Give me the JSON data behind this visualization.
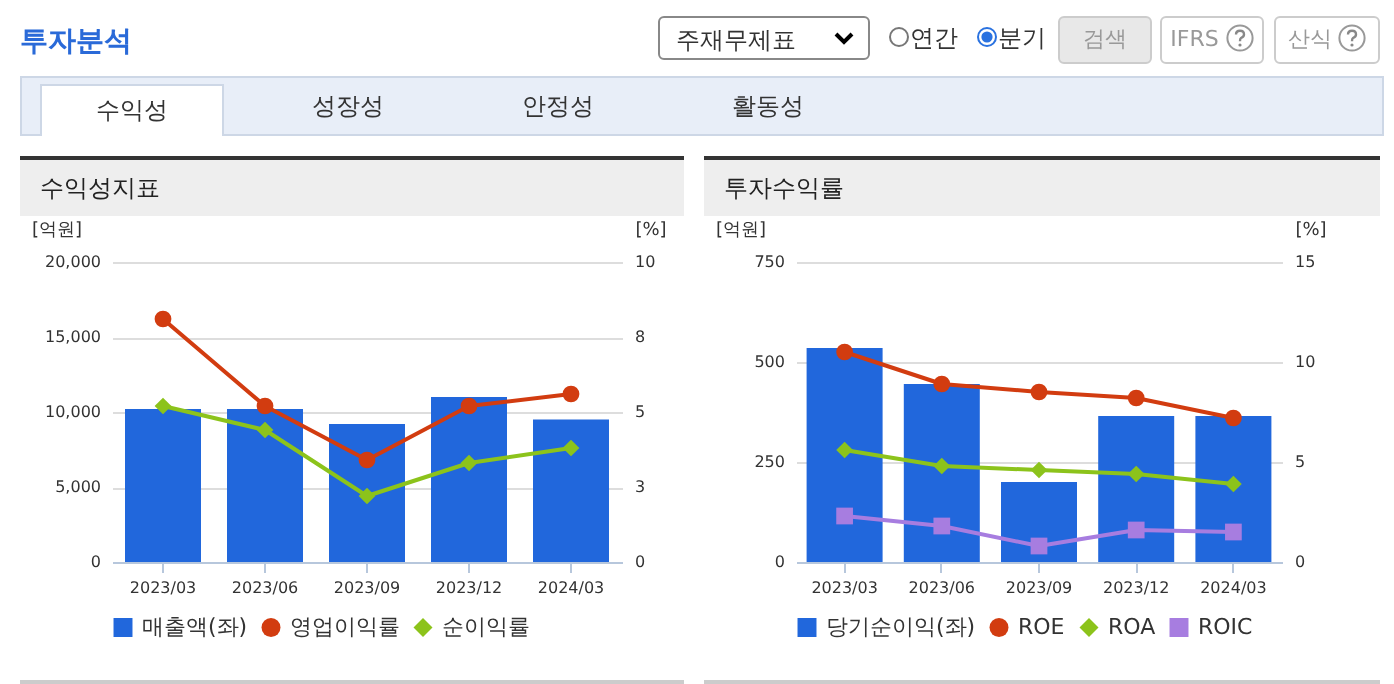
{
  "chart_data": [
    {
      "type": "other",
      "title": "투자분석",
      "annotations": [
        "주재무제표",
        "연간",
        "분기",
        "검색",
        "IFRS",
        "산식",
        "수익성",
        "성장성",
        "안정성",
        "활동성"
      ]
    },
    {
      "type": "bar",
      "title": "수익성지표",
      "categories": [
        "2023/03",
        "2023/06",
        "2023/09",
        "2023/12",
        "2024/03"
      ],
      "ylabel": "[억원]",
      "y2label": "[%]",
      "ylim": [
        0,
        20000
      ],
      "yticks": [
        0,
        {
          "value": 5000,
          "label": "5,000"
        },
        {
          "value": 10000,
          "label": "10,000"
        },
        {
          "value": 15000,
          "label": "15,000"
        },
        {
          "value": 20000,
          "label": "20,000"
        }
      ],
      "y2lim": [
        0,
        10
      ],
      "y2ticks": [
        0,
        {
          "value": 2.5,
          "label": "3"
        },
        5,
        {
          "value": 7.5,
          "label": "8"
        },
        10
      ],
      "grid": "y",
      "legend": "bottom",
      "series": [
        {
          "name": "매출액(좌)",
          "type": "bar",
          "color": "#2167dc",
          "values": [
            10200,
            10200,
            9200,
            11000,
            9500
          ]
        },
        {
          "name": "영업이익률",
          "type": "line",
          "axis": "y2",
          "marker": "circle",
          "color": "#d23c10",
          "values": [
            8.1,
            5.2,
            3.4,
            5.2,
            5.6
          ]
        },
        {
          "name": "순이익률",
          "type": "line",
          "axis": "y2",
          "marker": "diamond",
          "color": "#8cc31b",
          "values": [
            5.2,
            4.4,
            2.2,
            3.3,
            3.8
          ]
        }
      ]
    },
    {
      "type": "bar",
      "title": "투자수익률",
      "categories": [
        "2023/03",
        "2023/06",
        "2023/09",
        "2023/12",
        "2024/03"
      ],
      "ylabel": "[억원]",
      "y2label": "[%]",
      "ylim": [
        0,
        750
      ],
      "yticks": [
        0,
        250,
        500,
        750
      ],
      "y2lim": [
        0,
        15
      ],
      "y2ticks": [
        0,
        5,
        10,
        15
      ],
      "grid": "y",
      "legend": "bottom",
      "series": [
        {
          "name": "당기순이익(좌)",
          "type": "bar",
          "color": "#2167dc",
          "values": [
            535,
            445,
            200,
            365,
            365
          ]
        },
        {
          "name": "ROE",
          "type": "line",
          "axis": "y2",
          "marker": "circle",
          "color": "#d23c10",
          "values": [
            10.5,
            8.9,
            8.5,
            8.2,
            7.2
          ]
        },
        {
          "name": "ROA",
          "type": "line",
          "axis": "y2",
          "marker": "diamond",
          "color": "#8cc31b",
          "values": [
            5.6,
            4.8,
            4.6,
            4.4,
            3.9
          ]
        },
        {
          "name": "ROIC",
          "type": "line",
          "axis": "y2",
          "marker": "square",
          "color": "#a77de0",
          "values": [
            2.3,
            1.8,
            0.8,
            1.6,
            1.5
          ]
        }
      ]
    }
  ]
}
